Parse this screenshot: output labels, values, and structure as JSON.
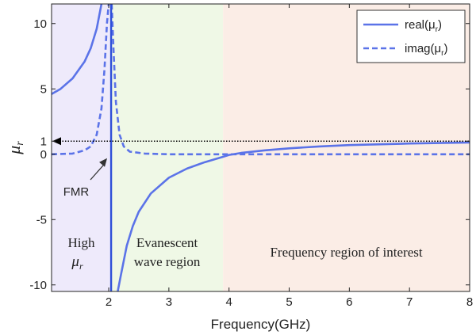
{
  "chart_data": {
    "type": "line",
    "xlabel": "Frequency(GHz)",
    "ylabel_main": "μ",
    "ylabel_sub": "r",
    "xlim": [
      1.05,
      8.0
    ],
    "ylim": [
      -10.5,
      11.5
    ],
    "xticks": [
      "2",
      "3",
      "4",
      "5",
      "6",
      "7",
      "8"
    ],
    "yticks": [
      "10",
      "5",
      "1",
      "0",
      "-5",
      "-10"
    ],
    "grid": false,
    "legend_position": "top-right",
    "series": [
      {
        "name": "real(μr)",
        "name_main": "real(μ",
        "name_sub": "r",
        "name_close": ")",
        "style": "solid",
        "color": "#5B73E8",
        "segments": [
          [
            [
              1.05,
              4.6
            ],
            [
              1.2,
              5.0
            ],
            [
              1.4,
              5.8
            ],
            [
              1.6,
              7.1
            ],
            [
              1.7,
              8.1
            ],
            [
              1.8,
              9.6
            ],
            [
              1.85,
              10.8
            ],
            [
              1.88,
              11.5
            ]
          ],
          [
            [
              2.15,
              -10.5
            ],
            [
              2.2,
              -9.3
            ],
            [
              2.3,
              -7.0
            ],
            [
              2.4,
              -5.5
            ],
            [
              2.5,
              -4.4
            ],
            [
              2.7,
              -3.0
            ],
            [
              3.0,
              -1.8
            ],
            [
              3.3,
              -1.1
            ],
            [
              3.6,
              -0.6
            ],
            [
              3.9,
              -0.2
            ],
            [
              4.0,
              -0.05
            ],
            [
              4.2,
              0.1
            ],
            [
              4.6,
              0.3
            ],
            [
              5.0,
              0.45
            ],
            [
              5.5,
              0.6
            ],
            [
              6.0,
              0.7
            ],
            [
              7.0,
              0.82
            ],
            [
              8.0,
              0.9
            ]
          ]
        ]
      },
      {
        "name": "imag(μr)",
        "name_main": "imag(μ",
        "name_sub": "r",
        "name_close": ")",
        "style": "dashed",
        "color": "#5B73E8",
        "segments": [
          [
            [
              1.05,
              0.0
            ],
            [
              1.4,
              0.05
            ],
            [
              1.6,
              0.3
            ],
            [
              1.7,
              0.6
            ],
            [
              1.8,
              1.5
            ],
            [
              1.88,
              3.5
            ],
            [
              1.93,
              6.5
            ],
            [
              1.97,
              10.0
            ],
            [
              2.0,
              11.5
            ]
          ],
          [
            [
              2.05,
              11.5
            ],
            [
              2.08,
              8.0
            ],
            [
              2.12,
              4.0
            ],
            [
              2.18,
              1.5
            ],
            [
              2.25,
              0.6
            ],
            [
              2.35,
              0.2
            ],
            [
              2.6,
              0.05
            ],
            [
              3.0,
              0.0
            ],
            [
              8.0,
              0.0
            ]
          ]
        ]
      }
    ],
    "reference_line": {
      "y": 1,
      "style": "dotted",
      "color": "#000000"
    },
    "fmr_line": {
      "x": 2.04,
      "color": "#2E4FD8"
    },
    "regions": [
      {
        "x0": 1.05,
        "x1": 2.04,
        "color": "#EEEAFB",
        "label_lines": [
          "High"
        ],
        "label_mu": "μ",
        "label_sub": "r"
      },
      {
        "x0": 2.04,
        "x1": 3.9,
        "color": "#EFF8E6",
        "label_lines": [
          "Evanescent",
          "wave region"
        ]
      },
      {
        "x0": 3.9,
        "x1": 8.0,
        "color": "#FBEDE6",
        "label_lines": [
          "Frequency region of interest"
        ]
      }
    ],
    "annotations": [
      {
        "text": "FMR",
        "target_x": 2.0,
        "target_y": 0.0
      }
    ]
  }
}
